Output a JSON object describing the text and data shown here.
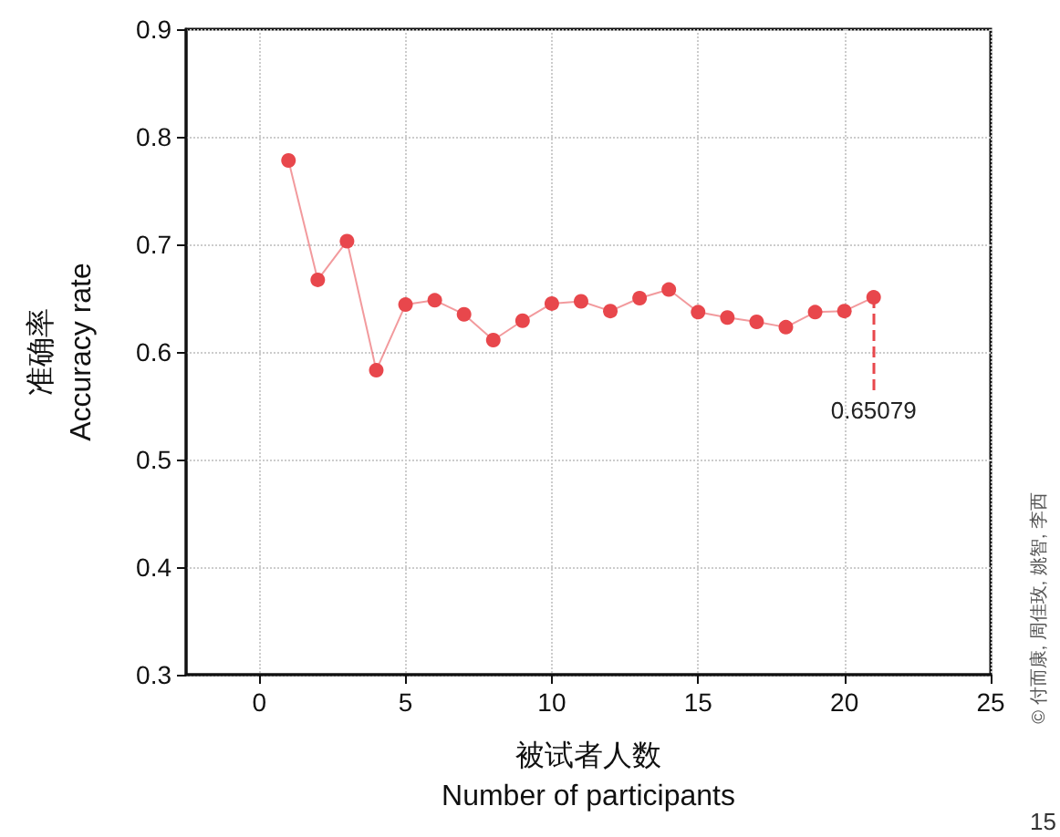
{
  "chart_data": {
    "type": "line",
    "xlabel": "被试者人数\nNumber of participants",
    "ylabel": "准确率\nAccuracy rate",
    "x": [
      1,
      2,
      3,
      4,
      5,
      6,
      7,
      8,
      9,
      10,
      11,
      12,
      13,
      14,
      15,
      16,
      17,
      18,
      19,
      20,
      21
    ],
    "series": [
      {
        "color": "#e8474c",
        "values": [
          0.778,
          0.667,
          0.703,
          0.583,
          0.644,
          0.648,
          0.635,
          0.611,
          0.629,
          0.645,
          0.647,
          0.638,
          0.65,
          0.658,
          0.637,
          0.632,
          0.628,
          0.623,
          0.637,
          0.638,
          0.65079
        ]
      }
    ],
    "xlim": [
      -2.5,
      25
    ],
    "xticks": [
      0,
      5,
      10,
      15,
      20,
      25
    ],
    "ylim": [
      0.3,
      0.9
    ],
    "yticks": [
      0.3,
      0.4,
      0.5,
      0.6,
      0.7,
      0.8,
      0.9
    ],
    "grid": true,
    "marker": "circle",
    "line_style": "solid",
    "annotations": [
      {
        "text": "0.65079",
        "x": 21,
        "y": 0.65079
      },
      "© 付而康, 周佳玫, 姚智, 李西",
      "15"
    ]
  }
}
